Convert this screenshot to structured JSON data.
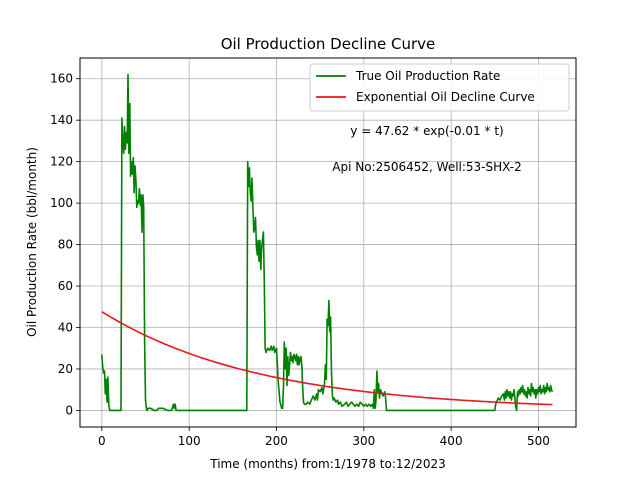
{
  "chart_data": {
    "type": "line",
    "title": "Oil Production Decline Curve",
    "xlabel": "Time (months) from:1/1978 to:12/2023",
    "ylabel": "Oil Production Rate (bbl/month)",
    "xlim": [
      -25,
      543
    ],
    "ylim": [
      -8,
      170
    ],
    "xticks": [
      0,
      100,
      200,
      300,
      400,
      500
    ],
    "yticks": [
      0,
      20,
      40,
      60,
      80,
      100,
      120,
      140,
      160
    ],
    "grid": true,
    "legend_position": "top-right",
    "annotations": [
      "y = 47.62 * exp(-0.01 * t)",
      "Api No:2506452, Well:53-SHX-2"
    ],
    "series": [
      {
        "name": "True Oil Production Rate",
        "color": "#008000",
        "points": [
          [
            0,
            27
          ],
          [
            1,
            21
          ],
          [
            2,
            18
          ],
          [
            3,
            19
          ],
          [
            4,
            8
          ],
          [
            5,
            15
          ],
          [
            6,
            4
          ],
          [
            7,
            16
          ],
          [
            8,
            3
          ],
          [
            9,
            0
          ],
          [
            15,
            0
          ],
          [
            20,
            0
          ],
          [
            22,
            0
          ],
          [
            23,
            141
          ],
          [
            24,
            130
          ],
          [
            25,
            124
          ],
          [
            26,
            137
          ],
          [
            27,
            126
          ],
          [
            28,
            134
          ],
          [
            29,
            129
          ],
          [
            30,
            162
          ],
          [
            31,
            124
          ],
          [
            32,
            148
          ],
          [
            33,
            113
          ],
          [
            34,
            120
          ],
          [
            35,
            114
          ],
          [
            36,
            122
          ],
          [
            37,
            105
          ],
          [
            38,
            118
          ],
          [
            39,
            111
          ],
          [
            40,
            98
          ],
          [
            41,
            101
          ],
          [
            42,
            100
          ],
          [
            43,
            107
          ],
          [
            44,
            99
          ],
          [
            45,
            104
          ],
          [
            46,
            86
          ],
          [
            47,
            104
          ],
          [
            48,
            98
          ],
          [
            49,
            34
          ],
          [
            50,
            5
          ],
          [
            51,
            1
          ],
          [
            52,
            0
          ],
          [
            53,
            1
          ],
          [
            56,
            1
          ],
          [
            60,
            0
          ],
          [
            63,
            0
          ],
          [
            65,
            1
          ],
          [
            70,
            1
          ],
          [
            75,
            0
          ],
          [
            80,
            0
          ],
          [
            82,
            3
          ],
          [
            83,
            1
          ],
          [
            84,
            3
          ],
          [
            85,
            0
          ],
          [
            100,
            0
          ],
          [
            120,
            0
          ],
          [
            150,
            0
          ],
          [
            165,
            0
          ],
          [
            166,
            0
          ],
          [
            167,
            120
          ],
          [
            168,
            108
          ],
          [
            169,
            117
          ],
          [
            170,
            105
          ],
          [
            171,
            101
          ],
          [
            172,
            112
          ],
          [
            173,
            98
          ],
          [
            174,
            86
          ],
          [
            175,
            88
          ],
          [
            176,
            93
          ],
          [
            177,
            79
          ],
          [
            178,
            75
          ],
          [
            179,
            82
          ],
          [
            180,
            72
          ],
          [
            181,
            82
          ],
          [
            182,
            68
          ],
          [
            183,
            78
          ],
          [
            184,
            82
          ],
          [
            185,
            86
          ],
          [
            186,
            62
          ],
          [
            187,
            30
          ],
          [
            188,
            28
          ],
          [
            190,
            30
          ],
          [
            192,
            29
          ],
          [
            194,
            31
          ],
          [
            195,
            29
          ],
          [
            197,
            31
          ],
          [
            198,
            28
          ],
          [
            200,
            30
          ],
          [
            202,
            14
          ],
          [
            204,
            4
          ],
          [
            206,
            1
          ],
          [
            207,
            1
          ],
          [
            208,
            12
          ],
          [
            209,
            33
          ],
          [
            210,
            20
          ],
          [
            211,
            30
          ],
          [
            212,
            12
          ],
          [
            213,
            26
          ],
          [
            214,
            17
          ],
          [
            215,
            22
          ],
          [
            216,
            28
          ],
          [
            217,
            24
          ],
          [
            218,
            26
          ],
          [
            219,
            23
          ],
          [
            220,
            27
          ],
          [
            221,
            26
          ],
          [
            222,
            24
          ],
          [
            223,
            27
          ],
          [
            224,
            22
          ],
          [
            225,
            26
          ],
          [
            226,
            22
          ],
          [
            227,
            25
          ],
          [
            228,
            26
          ],
          [
            229,
            22
          ],
          [
            230,
            11
          ],
          [
            231,
            4
          ],
          [
            232,
            3
          ],
          [
            234,
            3
          ],
          [
            236,
            4
          ],
          [
            238,
            3
          ],
          [
            240,
            5
          ],
          [
            242,
            7
          ],
          [
            244,
            5
          ],
          [
            246,
            8
          ],
          [
            247,
            5
          ],
          [
            248,
            10
          ],
          [
            250,
            9
          ],
          [
            252,
            11
          ],
          [
            253,
            8
          ],
          [
            254,
            10
          ],
          [
            255,
            13
          ],
          [
            256,
            22
          ],
          [
            257,
            15
          ],
          [
            258,
            44
          ],
          [
            259,
            41
          ],
          [
            260,
            53
          ],
          [
            261,
            38
          ],
          [
            262,
            45
          ],
          [
            263,
            18
          ],
          [
            264,
            7
          ],
          [
            265,
            5
          ],
          [
            266,
            6
          ],
          [
            268,
            4
          ],
          [
            270,
            5
          ],
          [
            271,
            3
          ],
          [
            273,
            4
          ],
          [
            275,
            2
          ],
          [
            278,
            3
          ],
          [
            280,
            4
          ],
          [
            282,
            2
          ],
          [
            284,
            3
          ],
          [
            286,
            4
          ],
          [
            288,
            3
          ],
          [
            290,
            2
          ],
          [
            292,
            3
          ],
          [
            294,
            2
          ],
          [
            296,
            4
          ],
          [
            298,
            3
          ],
          [
            300,
            2
          ],
          [
            302,
            3
          ],
          [
            304,
            2
          ],
          [
            306,
            3
          ],
          [
            308,
            2
          ],
          [
            310,
            3
          ],
          [
            311,
            1
          ],
          [
            312,
            10
          ],
          [
            313,
            1
          ],
          [
            314,
            5
          ],
          [
            315,
            19
          ],
          [
            316,
            9
          ],
          [
            317,
            13
          ],
          [
            318,
            6
          ],
          [
            319,
            10
          ],
          [
            320,
            9
          ],
          [
            322,
            7
          ],
          [
            324,
            9
          ],
          [
            325,
            6
          ],
          [
            326,
            0
          ],
          [
            330,
            0
          ],
          [
            350,
            0
          ],
          [
            400,
            0
          ],
          [
            440,
            0
          ],
          [
            450,
            0
          ],
          [
            451,
            3
          ],
          [
            452,
            4
          ],
          [
            454,
            6
          ],
          [
            456,
            5
          ],
          [
            458,
            7
          ],
          [
            460,
            8
          ],
          [
            461,
            5
          ],
          [
            462,
            9
          ],
          [
            463,
            6
          ],
          [
            464,
            10
          ],
          [
            465,
            7
          ],
          [
            466,
            9
          ],
          [
            467,
            6
          ],
          [
            468,
            9
          ],
          [
            469,
            5
          ],
          [
            470,
            8
          ],
          [
            471,
            7
          ],
          [
            472,
            10
          ],
          [
            473,
            6
          ],
          [
            474,
            2
          ],
          [
            475,
            0
          ],
          [
            476,
            9
          ],
          [
            477,
            7
          ],
          [
            478,
            10
          ],
          [
            479,
            8
          ],
          [
            480,
            11
          ],
          [
            481,
            9
          ],
          [
            482,
            12
          ],
          [
            483,
            8
          ],
          [
            484,
            10
          ],
          [
            485,
            7
          ],
          [
            486,
            9
          ],
          [
            487,
            6
          ],
          [
            488,
            11
          ],
          [
            489,
            8
          ],
          [
            490,
            10
          ],
          [
            491,
            7
          ],
          [
            492,
            13
          ],
          [
            493,
            9
          ],
          [
            494,
            11
          ],
          [
            495,
            8
          ],
          [
            496,
            10
          ],
          [
            497,
            6
          ],
          [
            498,
            10
          ],
          [
            499,
            8
          ],
          [
            500,
            11
          ],
          [
            501,
            9
          ],
          [
            502,
            12
          ],
          [
            503,
            8
          ],
          [
            504,
            10
          ],
          [
            505,
            9
          ],
          [
            506,
            12
          ],
          [
            507,
            8
          ],
          [
            508,
            11
          ],
          [
            509,
            9
          ],
          [
            510,
            13
          ],
          [
            511,
            10
          ],
          [
            512,
            11
          ],
          [
            513,
            9
          ],
          [
            514,
            12
          ],
          [
            515,
            10
          ],
          [
            516,
            9
          ]
        ]
      },
      {
        "name": "Exponential Oil Decline Curve",
        "color": "#e41a1c",
        "equation": {
          "a": 47.62,
          "b": 0.0055
        },
        "x_range": [
          0,
          516
        ]
      }
    ]
  }
}
